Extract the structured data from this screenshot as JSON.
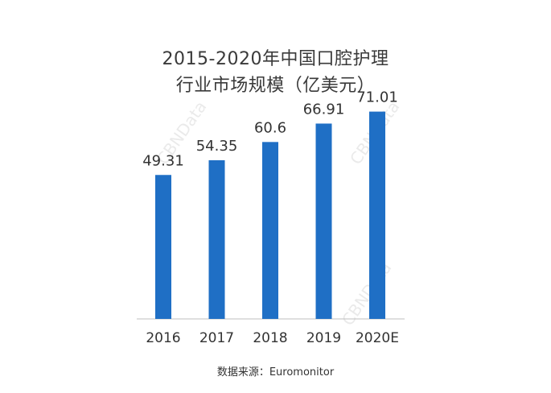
{
  "title_line1": "2015-2020年中国口腔护理",
  "title_line2": "行业市场规模（亿美元）",
  "watermark_text": "CBNData",
  "source": "数据来源：Euromonitor",
  "colors": {
    "bar": "#1F6FC5",
    "axis": "#bfbfbf",
    "label": "#333333"
  },
  "chart_data": {
    "type": "bar",
    "title": "2015-2020年中国口腔护理行业市场规模（亿美元）",
    "categories": [
      "2016",
      "2017",
      "2018",
      "2019",
      "2020E"
    ],
    "values": [
      49.31,
      54.35,
      60.6,
      66.91,
      71.01
    ],
    "value_labels": [
      "49.31",
      "54.35",
      "60.6",
      "66.91",
      "71.01"
    ],
    "xlabel": "",
    "ylabel": "",
    "ylim": [
      0,
      80
    ],
    "grid": false,
    "legend": "none"
  }
}
